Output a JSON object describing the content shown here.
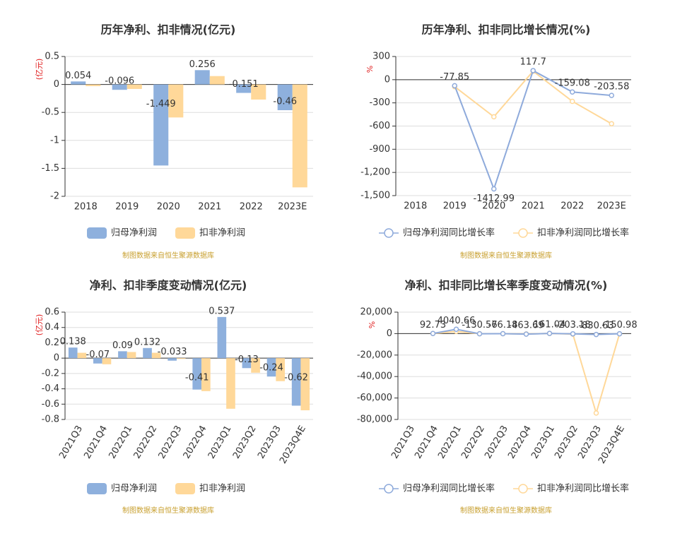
{
  "chart_data": [
    {
      "type": "bar",
      "title": "历年净利、扣非情况(亿元)",
      "y_label": "(亿元)",
      "categories": [
        "2018",
        "2019",
        "2020",
        "2021",
        "2022",
        "2023E"
      ],
      "series": [
        {
          "name": "归母净利润",
          "color": "#8eb0dd",
          "values": [
            0.054,
            -0.096,
            -1.449,
            0.256,
            -0.151,
            -0.46
          ]
        },
        {
          "name": "扣非净利润",
          "color": "#ffd899",
          "values": [
            -0.03,
            -0.08,
            -0.59,
            0.15,
            -0.27,
            -1.84
          ]
        }
      ],
      "ylim": [
        -2,
        0.5
      ],
      "yticks": [
        -2,
        -1.5,
        -1,
        -0.5,
        0,
        0.5
      ],
      "grid": true,
      "source": "制图数据来自恒生聚源数据库"
    },
    {
      "type": "line",
      "title": "历年净利、扣非同比增长情况(%)",
      "y_label": "%",
      "categories": [
        "2018",
        "2019",
        "2020",
        "2021",
        "2022",
        "2023E"
      ],
      "series": [
        {
          "name": "归母净利润同比增长率",
          "color": "#8eaadb",
          "values": [
            null,
            -77.85,
            -1412.99,
            117.7,
            -159.08,
            -203.58
          ]
        },
        {
          "name": "扣非净利润同比增长率",
          "color": "#ffd899",
          "values": [
            null,
            -90,
            -480,
            110,
            -280,
            -570
          ]
        }
      ],
      "ylim": [
        -1500,
        300
      ],
      "yticks": [
        300,
        0,
        -300,
        -600,
        -900,
        {
          "value": -1200,
          "label": "-1,200"
        },
        {
          "value": -1500,
          "label": "-1,500"
        }
      ],
      "grid": true,
      "source": "制图数据来自恒生聚源数据库"
    },
    {
      "type": "bar",
      "title": "净利、扣非季度变动情况(亿元)",
      "y_label": "(亿元)",
      "categories": [
        "2021Q3",
        "2021Q4",
        "2022Q1",
        "2022Q2",
        "2022Q3",
        "2022Q4",
        "2023Q1",
        "2023Q2",
        "2023Q3",
        "2023Q4E"
      ],
      "series": [
        {
          "name": "归母净利润",
          "color": "#8eb0dd",
          "values": [
            0.138,
            -0.07,
            0.09,
            0.132,
            -0.033,
            -0.41,
            0.537,
            -0.13,
            -0.24,
            -0.62
          ]
        },
        {
          "name": "扣非净利润",
          "color": "#ffd899",
          "values": [
            0.07,
            -0.08,
            0.08,
            0.07,
            -0.01,
            -0.43,
            -0.66,
            -0.19,
            -0.3,
            -0.68
          ]
        }
      ],
      "ylim": [
        -0.8,
        0.6
      ],
      "yticks": [
        -0.8,
        -0.6,
        -0.4,
        -0.2,
        0,
        0.2,
        0.4,
        0.6
      ],
      "grid": true,
      "source": "制图数据来自恒生聚源数据库"
    },
    {
      "type": "line",
      "title": "净利、扣非同比增长率季度变动情况(%)",
      "y_label": "%",
      "categories": [
        "2021Q3",
        "2021Q4",
        "2022Q1",
        "2022Q2",
        "2022Q3",
        "2022Q4",
        "2023Q1",
        "2023Q2",
        "2023Q3",
        "2023Q4E"
      ],
      "series": [
        {
          "name": "归母净利润同比增长率",
          "color": "#8eaadb",
          "values": [
            null,
            92.73,
            4040.66,
            -130.56,
            -76.18,
            -463.69,
            161.04,
            -203.18,
            -830.63,
            -150.98
          ]
        },
        {
          "name": "扣非净利润同比增长率",
          "color": "#ffd899",
          "values": [
            null,
            100,
            2000,
            -100,
            -50,
            -300,
            150,
            -500,
            -74000,
            -200
          ]
        }
      ],
      "ylim": [
        -80000,
        20000
      ],
      "yticks": [
        {
          "value": 20000,
          "label": "20,000"
        },
        0,
        {
          "value": -20000,
          "label": "-20,000"
        },
        {
          "value": -40000,
          "label": "-40,000"
        },
        {
          "value": -60000,
          "label": "-60,000"
        },
        {
          "value": -80000,
          "label": "-80,000"
        }
      ],
      "grid": true,
      "source": "制图数据来自恒生聚源数据库"
    }
  ]
}
